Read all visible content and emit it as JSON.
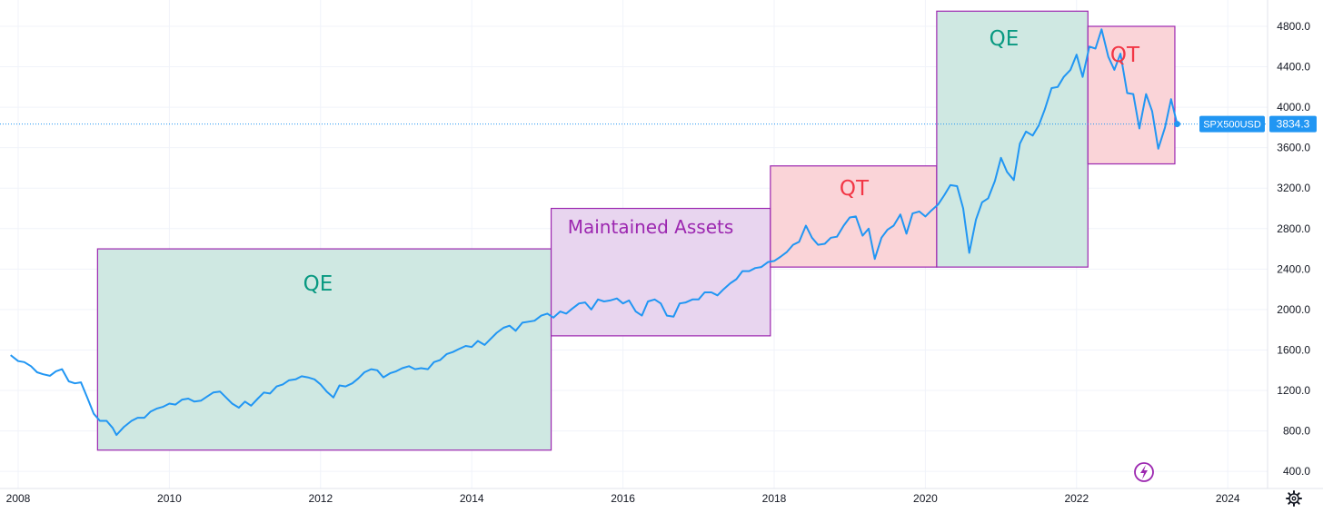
{
  "chart_data": {
    "type": "line",
    "symbol": "SPX500USD",
    "last_value": 3834.3,
    "last_value_label": "3834.3",
    "ylim": [
      300,
      5000
    ],
    "xlim": [
      2007.9,
      2025.1
    ],
    "y_ticks": [
      400,
      800,
      1200,
      1600,
      2000,
      2400,
      2800,
      3200,
      3600,
      4000,
      4400,
      4800
    ],
    "y_tick_labels": [
      "400.0",
      "800.0",
      "1200.0",
      "1600.0",
      "2000.0",
      "2400.0",
      "2800.0",
      "3200.0",
      "3600.0",
      "4000.0",
      "4400.0",
      "4800.0"
    ],
    "x_ticks": [
      2008,
      2010,
      2012,
      2014,
      2016,
      2018,
      2020,
      2022,
      2024
    ],
    "x_tick_labels": [
      "2008",
      "2010",
      "2012",
      "2014",
      "2016",
      "2018",
      "2020",
      "2022",
      "2024"
    ],
    "grid": true,
    "colors": {
      "line": "#2196F3",
      "qe_fill": "#CFE8E2",
      "qt_fill": "#FAD4D8",
      "maintained_fill": "#E8D5EF",
      "region_border": "#9C27B0",
      "qe_text": "#089981",
      "qt_text": "#F23645",
      "maintained_text": "#9C27B0",
      "label_bg": "#2196F3"
    },
    "regions": [
      {
        "label": "QE",
        "x0": 2009.05,
        "x1": 2015.05,
        "y0": 610,
        "y1": 2600,
        "kind": "qe"
      },
      {
        "label": "Maintained Assets",
        "x0": 2015.05,
        "x1": 2017.95,
        "y0": 1740,
        "y1": 3000,
        "kind": "maintained"
      },
      {
        "label": "QT",
        "x0": 2017.95,
        "x1": 2020.15,
        "y0": 2420,
        "y1": 3420,
        "kind": "qt"
      },
      {
        "label": "QE",
        "x0": 2020.15,
        "x1": 2022.15,
        "y0": 2420,
        "y1": 4950,
        "kind": "qe"
      },
      {
        "label": "QT",
        "x0": 2022.15,
        "x1": 2023.3,
        "y0": 3440,
        "y1": 4800,
        "kind": "qt"
      }
    ],
    "series": [
      {
        "values": [
          [
            2007.9,
            1550
          ],
          [
            2008.0,
            1490
          ],
          [
            2008.08,
            1480
          ],
          [
            2008.17,
            1440
          ],
          [
            2008.25,
            1380
          ],
          [
            2008.33,
            1360
          ],
          [
            2008.42,
            1345
          ],
          [
            2008.5,
            1390
          ],
          [
            2008.58,
            1410
          ],
          [
            2008.67,
            1290
          ],
          [
            2008.75,
            1270
          ],
          [
            2008.83,
            1280
          ],
          [
            2008.92,
            1120
          ],
          [
            2009.0,
            970
          ],
          [
            2009.08,
            900
          ],
          [
            2009.17,
            900
          ],
          [
            2009.25,
            830
          ],
          [
            2009.3,
            760
          ],
          [
            2009.4,
            840
          ],
          [
            2009.5,
            900
          ],
          [
            2009.58,
            930
          ],
          [
            2009.67,
            930
          ],
          [
            2009.75,
            990
          ],
          [
            2009.83,
            1020
          ],
          [
            2009.92,
            1040
          ],
          [
            2010.0,
            1070
          ],
          [
            2010.08,
            1060
          ],
          [
            2010.17,
            1110
          ],
          [
            2010.25,
            1120
          ],
          [
            2010.33,
            1090
          ],
          [
            2010.42,
            1100
          ],
          [
            2010.5,
            1140
          ],
          [
            2010.58,
            1180
          ],
          [
            2010.67,
            1190
          ],
          [
            2010.75,
            1130
          ],
          [
            2010.83,
            1070
          ],
          [
            2010.92,
            1030
          ],
          [
            2011.0,
            1090
          ],
          [
            2011.08,
            1050
          ],
          [
            2011.17,
            1120
          ],
          [
            2011.25,
            1180
          ],
          [
            2011.33,
            1170
          ],
          [
            2011.42,
            1240
          ],
          [
            2011.5,
            1260
          ],
          [
            2011.58,
            1300
          ],
          [
            2011.67,
            1310
          ],
          [
            2011.75,
            1340
          ],
          [
            2011.83,
            1330
          ],
          [
            2011.92,
            1310
          ],
          [
            2012.0,
            1260
          ],
          [
            2012.08,
            1190
          ],
          [
            2012.17,
            1130
          ],
          [
            2012.25,
            1250
          ],
          [
            2012.33,
            1240
          ],
          [
            2012.42,
            1270
          ],
          [
            2012.5,
            1320
          ],
          [
            2012.58,
            1380
          ],
          [
            2012.67,
            1410
          ],
          [
            2012.75,
            1400
          ],
          [
            2012.83,
            1330
          ],
          [
            2012.92,
            1370
          ],
          [
            2013.0,
            1390
          ],
          [
            2013.08,
            1420
          ],
          [
            2013.17,
            1440
          ],
          [
            2013.25,
            1410
          ],
          [
            2013.33,
            1420
          ],
          [
            2013.42,
            1410
          ],
          [
            2013.5,
            1480
          ],
          [
            2013.58,
            1500
          ],
          [
            2013.67,
            1560
          ],
          [
            2013.75,
            1580
          ],
          [
            2013.83,
            1610
          ],
          [
            2013.92,
            1640
          ],
          [
            2014.0,
            1630
          ],
          [
            2014.08,
            1690
          ],
          [
            2014.17,
            1650
          ],
          [
            2014.25,
            1710
          ],
          [
            2014.33,
            1770
          ],
          [
            2014.42,
            1820
          ],
          [
            2014.5,
            1840
          ],
          [
            2014.58,
            1790
          ],
          [
            2014.67,
            1870
          ],
          [
            2014.75,
            1880
          ],
          [
            2014.83,
            1890
          ],
          [
            2014.92,
            1940
          ],
          [
            2015.0,
            1960
          ],
          [
            2015.08,
            1920
          ],
          [
            2015.17,
            1980
          ],
          [
            2015.25,
            1960
          ],
          [
            2015.33,
            2010
          ],
          [
            2015.42,
            2060
          ],
          [
            2015.5,
            2070
          ],
          [
            2015.58,
            2000
          ],
          [
            2015.67,
            2100
          ],
          [
            2015.75,
            2080
          ],
          [
            2015.83,
            2090
          ],
          [
            2015.92,
            2110
          ],
          [
            2016.0,
            2060
          ],
          [
            2016.08,
            2090
          ],
          [
            2016.17,
            1980
          ],
          [
            2016.25,
            1940
          ],
          [
            2016.33,
            2080
          ],
          [
            2016.42,
            2100
          ],
          [
            2016.5,
            2060
          ],
          [
            2016.58,
            1940
          ],
          [
            2016.67,
            1930
          ],
          [
            2016.75,
            2060
          ],
          [
            2016.83,
            2070
          ],
          [
            2016.92,
            2100
          ],
          [
            2017.0,
            2100
          ],
          [
            2017.08,
            2170
          ],
          [
            2017.17,
            2170
          ],
          [
            2017.25,
            2140
          ],
          [
            2017.33,
            2200
          ],
          [
            2017.42,
            2260
          ],
          [
            2017.5,
            2300
          ],
          [
            2017.58,
            2380
          ],
          [
            2017.67,
            2380
          ],
          [
            2017.75,
            2410
          ],
          [
            2017.83,
            2420
          ],
          [
            2017.92,
            2470
          ],
          [
            2018.0,
            2480
          ],
          [
            2018.08,
            2520
          ],
          [
            2018.17,
            2570
          ],
          [
            2018.25,
            2640
          ],
          [
            2018.33,
            2670
          ],
          [
            2018.42,
            2830
          ],
          [
            2018.5,
            2710
          ],
          [
            2018.58,
            2640
          ],
          [
            2018.67,
            2650
          ],
          [
            2018.75,
            2710
          ],
          [
            2018.83,
            2720
          ],
          [
            2018.92,
            2830
          ],
          [
            2019.0,
            2910
          ],
          [
            2019.08,
            2920
          ],
          [
            2019.17,
            2730
          ],
          [
            2019.25,
            2800
          ],
          [
            2019.33,
            2500
          ],
          [
            2019.42,
            2710
          ],
          [
            2019.5,
            2790
          ],
          [
            2019.58,
            2830
          ],
          [
            2019.67,
            2940
          ],
          [
            2019.75,
            2750
          ],
          [
            2019.83,
            2950
          ],
          [
            2019.92,
            2970
          ],
          [
            2020.0,
            2920
          ],
          [
            2020.08,
            2980
          ],
          [
            2020.17,
            3040
          ],
          [
            2020.25,
            3130
          ],
          [
            2020.33,
            3230
          ],
          [
            2020.42,
            3220
          ],
          [
            2020.5,
            3000
          ],
          [
            2020.58,
            2560
          ],
          [
            2020.67,
            2890
          ],
          [
            2020.75,
            3060
          ],
          [
            2020.83,
            3100
          ],
          [
            2020.92,
            3270
          ],
          [
            2021.0,
            3500
          ],
          [
            2021.08,
            3360
          ],
          [
            2021.17,
            3280
          ],
          [
            2021.25,
            3640
          ],
          [
            2021.33,
            3760
          ],
          [
            2021.42,
            3720
          ],
          [
            2021.5,
            3820
          ],
          [
            2021.58,
            3980
          ],
          [
            2021.67,
            4190
          ],
          [
            2021.75,
            4200
          ],
          [
            2021.83,
            4300
          ],
          [
            2021.92,
            4370
          ],
          [
            2022.0,
            4520
          ],
          [
            2022.08,
            4300
          ],
          [
            2022.17,
            4600
          ],
          [
            2022.25,
            4580
          ],
          [
            2022.33,
            4770
          ],
          [
            2022.42,
            4500
          ],
          [
            2022.5,
            4370
          ],
          [
            2022.58,
            4530
          ],
          [
            2022.67,
            4140
          ],
          [
            2022.75,
            4130
          ],
          [
            2022.83,
            3790
          ],
          [
            2022.92,
            4130
          ],
          [
            2023.0,
            3960
          ],
          [
            2023.08,
            3590
          ],
          [
            2023.17,
            3800
          ],
          [
            2023.25,
            4080
          ],
          [
            2023.33,
            3834.3
          ]
        ]
      }
    ]
  },
  "ui": {
    "settings_icon": "gear-icon",
    "flash_icon": "lightning-icon"
  }
}
